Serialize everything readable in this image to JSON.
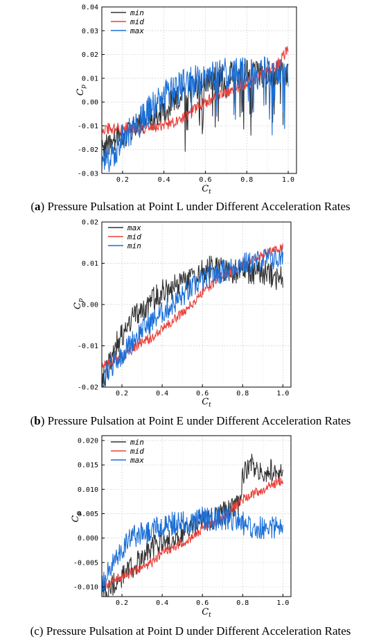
{
  "chart_data": [
    {
      "type": "line",
      "caption_label": "a",
      "caption_text": "Pressure Pulsation at Point L under Different Acceleration Rates",
      "xlabel": "C",
      "xlabel_sub": "t",
      "ylabel": "C",
      "ylabel_sub": "p",
      "xlim": [
        0.1,
        1.04
      ],
      "ylim": [
        -0.03,
        0.04
      ],
      "xticks": [
        0.2,
        0.4,
        0.6,
        0.8,
        1.0
      ],
      "xtick_labels": [
        "0.2",
        "0.4",
        "0.6",
        "0.8",
        "1.0"
      ],
      "yticks": [
        -0.03,
        -0.02,
        -0.01,
        0.0,
        0.01,
        0.02,
        0.03,
        0.04
      ],
      "ytick_labels": [
        "-0.03",
        "-0.02",
        "-0.01",
        "0.00",
        "0.01",
        "0.02",
        "0.03",
        "0.04"
      ],
      "grid": true,
      "legend": "top-left",
      "series": [
        {
          "name": "min",
          "color": "#333333",
          "x": [
            0.1,
            0.15,
            0.2,
            0.25,
            0.3,
            0.35,
            0.4,
            0.45,
            0.5,
            0.55,
            0.6,
            0.65,
            0.7,
            0.75,
            0.8,
            0.85,
            0.9,
            0.95,
            1.0
          ],
          "y": [
            -0.019,
            -0.017,
            -0.014,
            -0.011,
            -0.009,
            -0.006,
            -0.003,
            0.0,
            0.003,
            0.006,
            0.008,
            0.01,
            0.011,
            0.012,
            0.012,
            0.012,
            0.012,
            0.013,
            0.013
          ],
          "noise": 0.006,
          "spikes": 0.022
        },
        {
          "name": "mid",
          "color": "#e8403a",
          "x": [
            0.1,
            0.15,
            0.2,
            0.25,
            0.3,
            0.35,
            0.4,
            0.45,
            0.5,
            0.55,
            0.6,
            0.65,
            0.7,
            0.75,
            0.8,
            0.85,
            0.9,
            0.95,
            1.0
          ],
          "y": [
            -0.011,
            -0.011,
            -0.011,
            -0.011,
            -0.011,
            -0.011,
            -0.01,
            -0.008,
            -0.006,
            -0.003,
            0.0,
            0.002,
            0.004,
            0.006,
            0.008,
            0.01,
            0.013,
            0.016,
            0.022
          ],
          "noise": 0.0025,
          "spikes": 0
        },
        {
          "name": "max",
          "color": "#1a6fd8",
          "x": [
            0.1,
            0.15,
            0.2,
            0.25,
            0.3,
            0.35,
            0.4,
            0.45,
            0.5,
            0.55,
            0.6,
            0.65,
            0.7,
            0.75,
            0.8,
            0.85,
            0.9,
            0.95,
            1.0
          ],
          "y": [
            -0.027,
            -0.021,
            -0.016,
            -0.011,
            -0.006,
            -0.002,
            0.002,
            0.005,
            0.007,
            0.009,
            0.01,
            0.011,
            0.012,
            0.012,
            0.012,
            0.012,
            0.012,
            0.012,
            0.012
          ],
          "noise": 0.007,
          "spikes": 0.02
        }
      ]
    },
    {
      "type": "line",
      "caption_label": "b",
      "caption_text": "Pressure Pulsation at Point E under Different Acceleration Rates",
      "xlabel": "C",
      "xlabel_sub": "t",
      "ylabel": "C",
      "ylabel_sub": "p",
      "xlim": [
        0.1,
        1.04
      ],
      "ylim": [
        -0.02,
        0.02
      ],
      "xticks": [
        0.2,
        0.4,
        0.6,
        0.8,
        1.0
      ],
      "xtick_labels": [
        "0.2",
        "0.4",
        "0.6",
        "0.8",
        "1.0"
      ],
      "yticks": [
        -0.02,
        -0.01,
        0.0,
        0.01,
        0.02
      ],
      "ytick_labels": [
        "-0.02",
        "-0.01",
        "0.00",
        "0.01",
        "0.02"
      ],
      "grid": true,
      "legend": "top-left",
      "series": [
        {
          "name": "max",
          "color": "#333333",
          "x": [
            0.1,
            0.15,
            0.2,
            0.25,
            0.3,
            0.35,
            0.4,
            0.45,
            0.5,
            0.55,
            0.6,
            0.65,
            0.7,
            0.75,
            0.8,
            0.85,
            0.9,
            0.95,
            1.0
          ],
          "y": [
            -0.019,
            -0.012,
            -0.007,
            -0.004,
            -0.001,
            0.001,
            0.003,
            0.004,
            0.006,
            0.007,
            0.008,
            0.009,
            0.009,
            0.008,
            0.008,
            0.008,
            0.008,
            0.007,
            0.006
          ],
          "noise": 0.0032,
          "spikes": 0
        },
        {
          "name": "mid",
          "color": "#e8403a",
          "x": [
            0.1,
            0.15,
            0.2,
            0.25,
            0.3,
            0.35,
            0.4,
            0.45,
            0.5,
            0.55,
            0.6,
            0.65,
            0.7,
            0.75,
            0.8,
            0.85,
            0.9,
            0.95,
            1.0
          ],
          "y": [
            -0.015,
            -0.014,
            -0.013,
            -0.011,
            -0.009,
            -0.008,
            -0.006,
            -0.004,
            -0.002,
            0.0,
            0.003,
            0.005,
            0.007,
            0.008,
            0.01,
            0.011,
            0.012,
            0.013,
            0.014
          ],
          "noise": 0.0012,
          "spikes": 0
        },
        {
          "name": "min",
          "color": "#1a6fd8",
          "x": [
            0.1,
            0.15,
            0.2,
            0.25,
            0.3,
            0.35,
            0.4,
            0.45,
            0.5,
            0.55,
            0.6,
            0.65,
            0.7,
            0.75,
            0.8,
            0.85,
            0.9,
            0.95,
            1.0
          ],
          "y": [
            -0.019,
            -0.015,
            -0.012,
            -0.009,
            -0.006,
            -0.004,
            -0.002,
            0.0,
            0.002,
            0.004,
            0.006,
            0.007,
            0.008,
            0.009,
            0.01,
            0.01,
            0.011,
            0.011,
            0.011
          ],
          "noise": 0.0028,
          "spikes": 0
        }
      ]
    },
    {
      "type": "line",
      "caption_label": "c",
      "caption_text": "Pressure Pulsation at Point D under Different Acceleration Rates",
      "xlabel": "C",
      "xlabel_sub": "t",
      "ylabel": "C",
      "ylabel_sub": "p",
      "xlim": [
        0.1,
        1.04
      ],
      "ylim": [
        -0.012,
        0.021
      ],
      "xticks": [
        0.2,
        0.4,
        0.6,
        0.8,
        1.0
      ],
      "xtick_labels": [
        "0.2",
        "0.4",
        "0.6",
        "0.8",
        "1.0"
      ],
      "yticks": [
        -0.01,
        -0.005,
        0.0,
        0.005,
        0.01,
        0.015,
        0.02
      ],
      "ytick_labels": [
        "-0.010",
        "-0.005",
        "0.000",
        "0.005",
        "0.010",
        "0.015",
        "0.020"
      ],
      "grid": true,
      "legend": "top-left",
      "series": [
        {
          "name": "min",
          "color": "#333333",
          "x": [
            0.1,
            0.15,
            0.2,
            0.25,
            0.3,
            0.35,
            0.4,
            0.45,
            0.5,
            0.55,
            0.6,
            0.65,
            0.7,
            0.75,
            0.78,
            0.8,
            0.85,
            0.9,
            0.95,
            1.0
          ],
          "y": [
            -0.012,
            -0.01,
            -0.008,
            -0.006,
            -0.004,
            -0.002,
            -0.001,
            0.0,
            0.001,
            0.002,
            0.003,
            0.004,
            0.005,
            0.006,
            0.007,
            0.013,
            0.015,
            0.014,
            0.014,
            0.013
          ],
          "noise": 0.0025,
          "spikes": 0
        },
        {
          "name": "mid",
          "color": "#e8403a",
          "x": [
            0.1,
            0.15,
            0.2,
            0.25,
            0.3,
            0.35,
            0.4,
            0.45,
            0.5,
            0.55,
            0.6,
            0.65,
            0.7,
            0.75,
            0.8,
            0.85,
            0.9,
            0.95,
            1.0
          ],
          "y": [
            -0.01,
            -0.009,
            -0.008,
            -0.007,
            -0.006,
            -0.005,
            -0.003,
            -0.002,
            -0.001,
            0.0,
            0.002,
            0.003,
            0.004,
            0.006,
            0.008,
            0.009,
            0.01,
            0.011,
            0.012
          ],
          "noise": 0.001,
          "spikes": 0
        },
        {
          "name": "max",
          "color": "#1a6fd8",
          "x": [
            0.1,
            0.15,
            0.2,
            0.25,
            0.3,
            0.35,
            0.4,
            0.45,
            0.5,
            0.55,
            0.6,
            0.65,
            0.7,
            0.75,
            0.8,
            0.85,
            0.9,
            0.95,
            1.0
          ],
          "y": [
            -0.01,
            -0.005,
            -0.002,
            0.0,
            0.001,
            0.002,
            0.002,
            0.003,
            0.003,
            0.003,
            0.004,
            0.004,
            0.004,
            0.004,
            0.003,
            0.002,
            0.002,
            0.002,
            0.002
          ],
          "noise": 0.0025,
          "spikes": 0
        }
      ]
    }
  ]
}
